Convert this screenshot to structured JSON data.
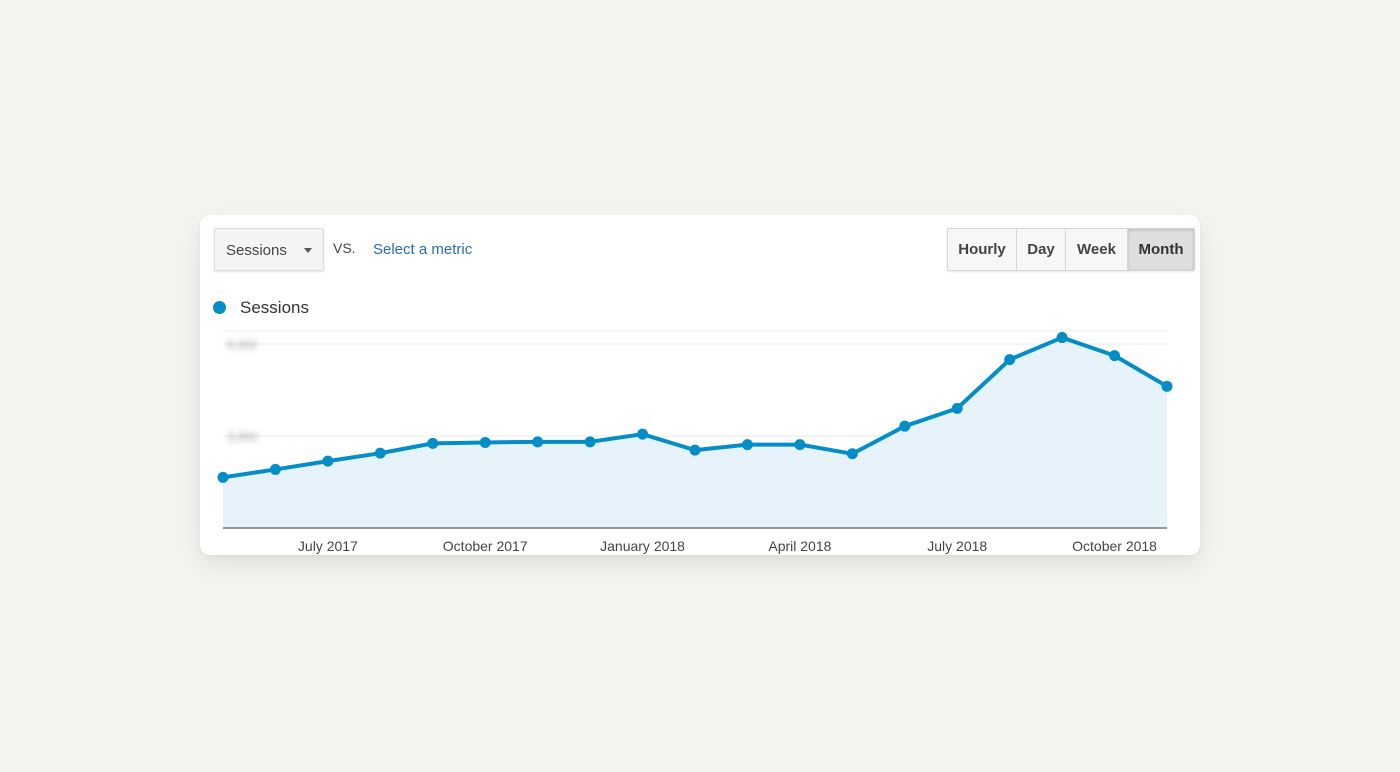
{
  "toolbar": {
    "primary_metric": "Sessions",
    "vs_label": "VS.",
    "secondary_metric_link": "Select a metric",
    "granularity_options": [
      "Hourly",
      "Day",
      "Week",
      "Month"
    ],
    "selected_granularity": "Month"
  },
  "colors": {
    "series_line": "#058dc7",
    "series_fill": "#e7f3fb",
    "link": "#2a6bb1"
  },
  "chart_data": {
    "type": "line",
    "series": [
      {
        "name": "Sessions",
        "values": [
          1650,
          1910,
          2180,
          2440,
          2760,
          2790,
          2810,
          2810,
          3060,
          2540,
          2720,
          2720,
          2420,
          3320,
          3900,
          5490,
          6210,
          5620,
          4620
        ]
      }
    ],
    "x": [
      "2017-05",
      "2017-06",
      "2017-07",
      "2017-08",
      "2017-09",
      "2017-10",
      "2017-11",
      "2017-12",
      "2018-01",
      "2018-02",
      "2018-03",
      "2018-04",
      "2018-05",
      "2018-06",
      "2018-07",
      "2018-08",
      "2018-09",
      "2018-10",
      "2018-11"
    ],
    "x_tick_labels": [
      "July 2017",
      "October 2017",
      "January 2018",
      "April 2018",
      "July 2018",
      "October 2018"
    ],
    "x_tick_positions": [
      "2017-07",
      "2017-10",
      "2018-01",
      "2018-04",
      "2018-07",
      "2018-10"
    ],
    "y_tick_labels": [
      "3,000",
      "6,000"
    ],
    "y_tick_values": [
      3000,
      6000
    ],
    "ylim": [
      0,
      6000
    ],
    "grid": true,
    "legend_position": "top-left",
    "title": "",
    "xlabel": "",
    "ylabel": ""
  }
}
